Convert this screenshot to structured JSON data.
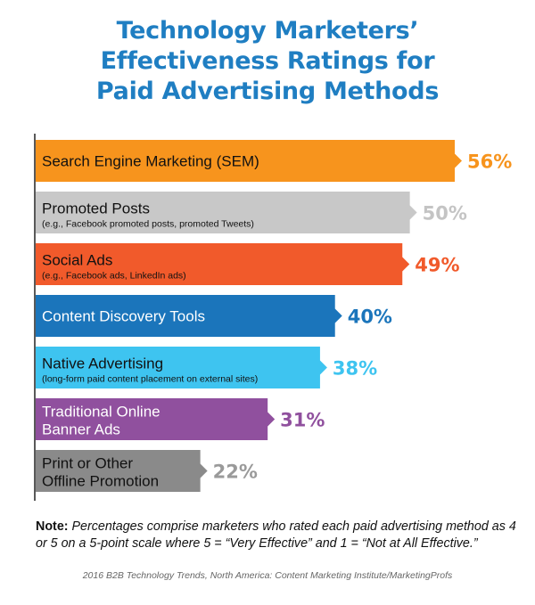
{
  "title_lines": [
    "Technology Marketers’",
    "Effectiveness Ratings for",
    "Paid Advertising Methods"
  ],
  "chart_data": {
    "type": "bar",
    "orientation": "horizontal",
    "title": "Technology Marketers’ Effectiveness Ratings for Paid Advertising Methods",
    "xlim": [
      0,
      60
    ],
    "categories": [
      {
        "label": [
          "Search Engine Marketing (SEM)"
        ],
        "sublabel": "",
        "value": 56,
        "display": "56%",
        "color": "#f7941d",
        "label_color": "#111111",
        "value_color": "#f7941d"
      },
      {
        "label": [
          "Promoted Posts"
        ],
        "sublabel": "(e.g., Facebook promoted posts, promoted Tweets)",
        "value": 50,
        "display": "50%",
        "color": "#c8c8c8",
        "label_color": "#111111",
        "value_color": "#c4c4c4"
      },
      {
        "label": [
          "Social Ads"
        ],
        "sublabel": "(e.g., Facebook ads, LinkedIn ads)",
        "value": 49,
        "display": "49%",
        "color": "#f15a2b",
        "label_color": "#111111",
        "value_color": "#f15a2b"
      },
      {
        "label": [
          "Content Discovery Tools"
        ],
        "sublabel": "",
        "value": 40,
        "display": "40%",
        "color": "#1b75bb",
        "label_color": "#ffffff",
        "value_color": "#1b75bb"
      },
      {
        "label": [
          "Native Advertising"
        ],
        "sublabel": "(long-form paid content placement on external sites)",
        "value": 38,
        "display": "38%",
        "color": "#3ec4f0",
        "label_color": "#111111",
        "value_color": "#3ec4f0"
      },
      {
        "label": [
          "Traditional Online",
          "Banner Ads"
        ],
        "sublabel": "",
        "value": 31,
        "display": "31%",
        "color": "#90509e",
        "label_color": "#ffffff",
        "value_color": "#90509e"
      },
      {
        "label": [
          "Print or Other",
          "Offline Promotion"
        ],
        "sublabel": "",
        "value": 22,
        "display": "22%",
        "color": "#8a8a8a",
        "label_color": "#111111",
        "value_color": "#9a9a9a"
      }
    ]
  },
  "note": {
    "label": "Note:",
    "text": " Percentages comprise marketers who rated each paid advertising method as 4 or 5 on a 5-point scale where 5 = “Very Effective” and 1 = “Not at All Effective.”"
  },
  "source": "2016 B2B Technology Trends, North America: Content Marketing Institute/MarketingProfs"
}
